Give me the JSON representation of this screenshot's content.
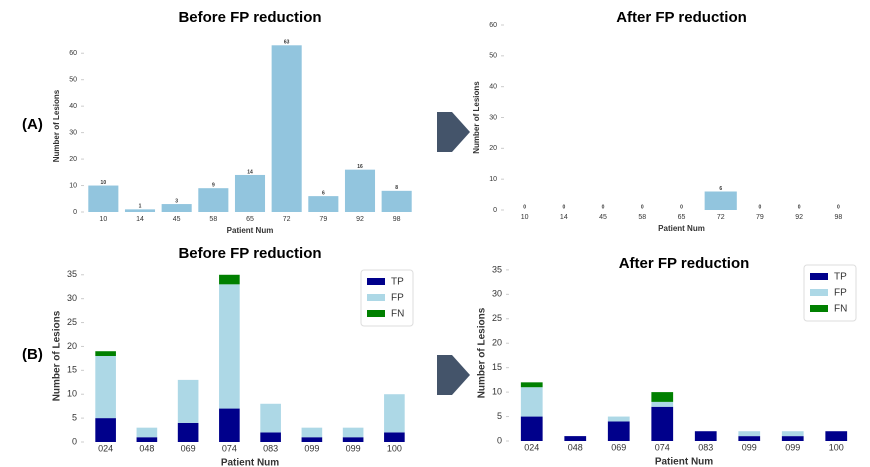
{
  "panel_labels": [
    "(A)",
    "(B)"
  ],
  "chart_data": [
    {
      "type": "bar",
      "title": "Before FP reduction",
      "x_label": "Patient Num",
      "y_label": "Number of Lesions",
      "categories": [
        "10",
        "14",
        "45",
        "58",
        "65",
        "72",
        "79",
        "92",
        "98"
      ],
      "values": [
        10,
        1,
        3,
        9,
        14,
        63,
        6,
        16,
        8
      ],
      "color": "#92c5de",
      "ylim": [
        0,
        65
      ],
      "yticks": [
        0,
        10,
        20,
        30,
        40,
        50,
        60
      ],
      "grid": false
    },
    {
      "type": "bar",
      "title": "After FP reduction",
      "x_label": "Patient Num",
      "y_label": "Number of Lesions",
      "categories": [
        "10",
        "14",
        "45",
        "58",
        "65",
        "72",
        "79",
        "92",
        "98"
      ],
      "values": [
        0,
        0,
        0,
        0,
        0,
        6,
        0,
        0,
        0
      ],
      "color": "#92c5de",
      "ylim": [
        0,
        60
      ],
      "yticks": [
        0,
        10,
        20,
        30,
        40,
        50,
        60
      ],
      "grid": false
    },
    {
      "type": "stacked_bar",
      "title": "Before FP reduction",
      "x_label": "Patient Num",
      "y_label": "Number of Lesions",
      "categories": [
        "024",
        "048",
        "069",
        "074",
        "083",
        "099",
        "099",
        "100"
      ],
      "series": [
        {
          "name": "TP",
          "color": "#00008b",
          "values": [
            5,
            1,
            4,
            7,
            2,
            1,
            1,
            2
          ]
        },
        {
          "name": "FP",
          "color": "#add8e6",
          "values": [
            13,
            2,
            9,
            26,
            6,
            2,
            2,
            8
          ]
        },
        {
          "name": "FN",
          "color": "#008000",
          "values": [
            1,
            0,
            0,
            2,
            0,
            0,
            0,
            0
          ]
        }
      ],
      "ylim": [
        0,
        36
      ],
      "yticks": [
        0,
        5,
        10,
        15,
        20,
        25,
        30,
        35
      ],
      "legend": "upper right",
      "grid": false
    },
    {
      "type": "stacked_bar",
      "title": "After FP reduction",
      "x_label": "Patient Num",
      "y_label": "Number of Lesions",
      "categories": [
        "024",
        "048",
        "069",
        "074",
        "083",
        "099",
        "099",
        "100"
      ],
      "series": [
        {
          "name": "TP",
          "color": "#00008b",
          "values": [
            5,
            1,
            4,
            7,
            2,
            1,
            1,
            2
          ]
        },
        {
          "name": "FP",
          "color": "#add8e6",
          "values": [
            6,
            0,
            1,
            1,
            0,
            1,
            1,
            0
          ]
        },
        {
          "name": "FN",
          "color": "#008000",
          "values": [
            1,
            0,
            0,
            2,
            0,
            0,
            0,
            0
          ]
        }
      ],
      "ylim": [
        0,
        36
      ],
      "yticks": [
        0,
        5,
        10,
        15,
        20,
        25,
        30,
        35
      ],
      "legend": "upper right",
      "grid": false
    }
  ]
}
